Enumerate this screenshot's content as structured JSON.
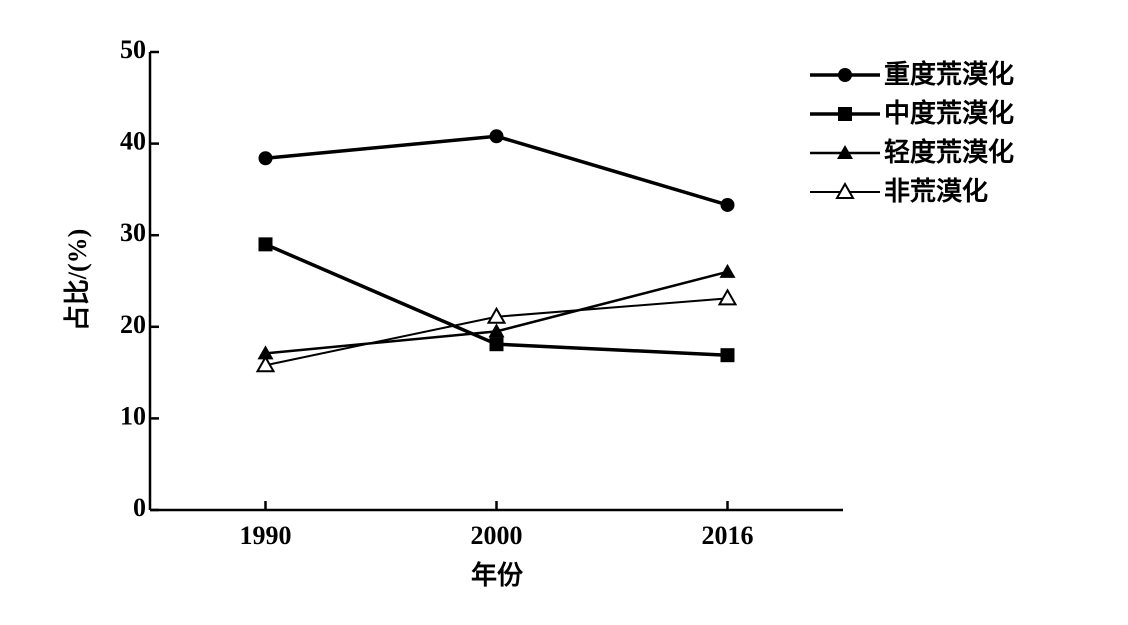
{
  "chart_data": {
    "type": "line",
    "x_label": "年份",
    "y_label": "占比/(%)",
    "categories": [
      "1990",
      "2000",
      "2016"
    ],
    "series": [
      {
        "name": "重度荒漠化",
        "color": "#000000",
        "marker": "circle",
        "line_width": 3.5,
        "values": [
          38.4,
          40.8,
          33.3
        ]
      },
      {
        "name": "中度荒漠化",
        "color": "#000000",
        "marker": "square",
        "line_width": 3.5,
        "values": [
          29.0,
          18.1,
          16.9
        ]
      },
      {
        "name": "轻度荒漠化",
        "color": "#000000",
        "marker": "triangle",
        "line_width": 2.5,
        "values": [
          17.1,
          19.5,
          26.0
        ]
      },
      {
        "name": "非荒漠化",
        "color": "#000000",
        "marker": "open-triangle",
        "line_width": 2,
        "values": [
          15.8,
          21.1,
          23.1
        ]
      }
    ],
    "ylim": [
      0,
      50
    ],
    "yticks": [
      0,
      10,
      20,
      30,
      40,
      50
    ],
    "grid": false,
    "legend": "upper right"
  }
}
